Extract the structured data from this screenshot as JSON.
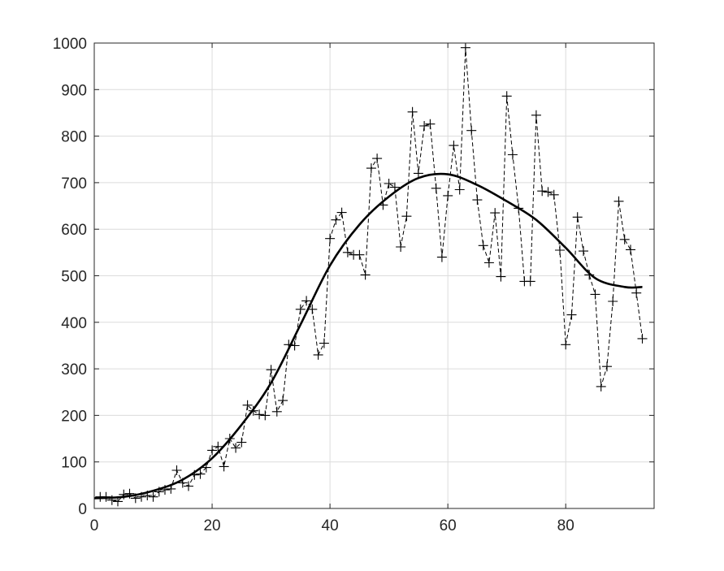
{
  "chart_data": {
    "type": "line",
    "title": "",
    "xlabel": "",
    "ylabel": "",
    "xlim": [
      0,
      95
    ],
    "ylim": [
      0,
      1000
    ],
    "x_ticks": [
      0,
      20,
      40,
      60,
      80
    ],
    "y_ticks": [
      0,
      100,
      200,
      300,
      400,
      500,
      600,
      700,
      800,
      900,
      1000
    ],
    "grid": true,
    "legend": false,
    "series": [
      {
        "style": "dashed line with plus markers",
        "color": "#000000",
        "x": [
          1,
          2,
          3,
          4,
          5,
          6,
          7,
          8,
          9,
          10,
          11,
          12,
          13,
          14,
          15,
          16,
          17,
          18,
          19,
          20,
          21,
          22,
          23,
          24,
          25,
          26,
          27,
          28,
          29,
          30,
          31,
          32,
          33,
          34,
          35,
          36,
          37,
          38,
          39,
          40,
          41,
          42,
          43,
          44,
          45,
          46,
          47,
          48,
          49,
          50,
          51,
          52,
          53,
          54,
          55,
          56,
          57,
          58,
          59,
          60,
          61,
          62,
          63,
          64,
          65,
          66,
          67,
          68,
          69,
          70,
          71,
          72,
          73,
          74,
          75,
          76,
          77,
          78,
          79,
          80,
          81,
          82,
          83,
          84,
          85,
          86,
          87,
          88,
          89,
          90,
          91,
          92,
          93
        ],
        "y": [
          25,
          25,
          18,
          15,
          30,
          32,
          22,
          25,
          28,
          25,
          36,
          40,
          42,
          82,
          55,
          48,
          72,
          74,
          88,
          125,
          133,
          90,
          150,
          130,
          142,
          222,
          210,
          202,
          200,
          298,
          208,
          232,
          352,
          350,
          428,
          446,
          428,
          330,
          355,
          580,
          620,
          636,
          550,
          545,
          545,
          502,
          731,
          752,
          652,
          698,
          690,
          562,
          628,
          852,
          720,
          822,
          826,
          688,
          540,
          672,
          780,
          685,
          990,
          812,
          663,
          565,
          528,
          635,
          498,
          886,
          760,
          645,
          488,
          488,
          845,
          682,
          680,
          674,
          555,
          352,
          416,
          626,
          553,
          502,
          460,
          262,
          305,
          445,
          660,
          578,
          556,
          463,
          365
        ]
      },
      {
        "style": "solid thick line",
        "color": "#000000",
        "x": [
          0,
          5,
          10,
          15,
          20,
          25,
          30,
          35,
          40,
          45,
          50,
          55,
          60,
          65,
          70,
          75,
          80,
          85,
          90,
          93
        ],
        "y": [
          22,
          25,
          38,
          62,
          108,
          180,
          270,
          395,
          522,
          610,
          670,
          710,
          718,
          695,
          660,
          620,
          560,
          495,
          476,
          476
        ]
      }
    ]
  }
}
